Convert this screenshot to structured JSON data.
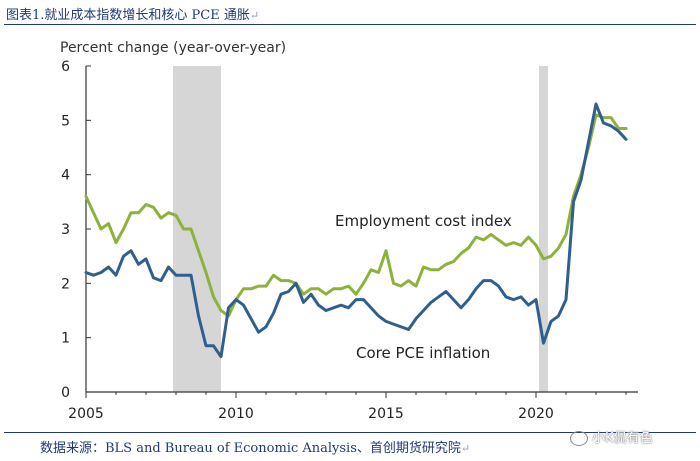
{
  "header": {
    "title": "图表1.就业成本指数增长和核心 PCE 通胀",
    "return_mark": "↵"
  },
  "footer": {
    "source": "数据来源：BLS and Bureau of Economic Analysis、首创期货研究院",
    "return_mark": "↵",
    "watermark": "小K侃有色"
  },
  "colors": {
    "eci": "#8db23c",
    "pce": "#2f5f8f",
    "recession": "#d6d6d6",
    "axis": "#333333",
    "title": "#1f3a78"
  },
  "chart_data": {
    "type": "line",
    "title": "",
    "ylabel": "Percent change (year-over-year)",
    "xlabel": "",
    "xlim": [
      2005,
      2023.4
    ],
    "ylim": [
      0,
      6
    ],
    "xticks": [
      2005,
      2010,
      2015,
      2020
    ],
    "yticks": [
      0,
      1,
      2,
      3,
      4,
      5,
      6
    ],
    "grid": false,
    "recessions": [
      [
        2007.9,
        2009.5
      ],
      [
        2020.1,
        2020.4
      ]
    ],
    "series": [
      {
        "name": "Employment cost index",
        "label": "Employment cost index",
        "x": [
          2005.0,
          2005.25,
          2005.5,
          2005.75,
          2006.0,
          2006.25,
          2006.5,
          2006.75,
          2007.0,
          2007.25,
          2007.5,
          2007.75,
          2008.0,
          2008.25,
          2008.5,
          2008.75,
          2009.0,
          2009.25,
          2009.5,
          2009.75,
          2010.0,
          2010.25,
          2010.5,
          2010.75,
          2011.0,
          2011.25,
          2011.5,
          2011.75,
          2012.0,
          2012.25,
          2012.5,
          2012.75,
          2013.0,
          2013.25,
          2013.5,
          2013.75,
          2014.0,
          2014.25,
          2014.5,
          2014.75,
          2015.0,
          2015.25,
          2015.5,
          2015.75,
          2016.0,
          2016.25,
          2016.5,
          2016.75,
          2017.0,
          2017.25,
          2017.5,
          2017.75,
          2018.0,
          2018.25,
          2018.5,
          2018.75,
          2019.0,
          2019.25,
          2019.5,
          2019.75,
          2020.0,
          2020.25,
          2020.5,
          2020.75,
          2021.0,
          2021.25,
          2021.5,
          2021.75,
          2022.0,
          2022.25,
          2022.5,
          2022.75,
          2023.0
        ],
        "y": [
          3.6,
          3.3,
          3.0,
          3.1,
          2.75,
          3.0,
          3.3,
          3.3,
          3.45,
          3.4,
          3.2,
          3.3,
          3.25,
          3.0,
          3.0,
          2.6,
          2.2,
          1.75,
          1.5,
          1.4,
          1.7,
          1.9,
          1.9,
          1.95,
          1.95,
          2.15,
          2.05,
          2.05,
          2.0,
          1.8,
          1.9,
          1.9,
          1.8,
          1.9,
          1.9,
          1.95,
          1.8,
          2.0,
          2.25,
          2.2,
          2.6,
          2.0,
          1.95,
          2.05,
          1.95,
          2.3,
          2.25,
          2.25,
          2.35,
          2.4,
          2.55,
          2.65,
          2.85,
          2.8,
          2.9,
          2.8,
          2.7,
          2.75,
          2.7,
          2.85,
          2.7,
          2.45,
          2.5,
          2.65,
          2.9,
          3.6,
          4.0,
          4.5,
          5.1,
          5.05,
          5.05,
          4.85,
          4.85
        ]
      },
      {
        "name": "Core PCE inflation",
        "label": "Core PCE inflation",
        "x": [
          2005.0,
          2005.25,
          2005.5,
          2005.75,
          2006.0,
          2006.25,
          2006.5,
          2006.75,
          2007.0,
          2007.25,
          2007.5,
          2007.75,
          2008.0,
          2008.25,
          2008.5,
          2008.75,
          2009.0,
          2009.25,
          2009.5,
          2009.75,
          2010.0,
          2010.25,
          2010.5,
          2010.75,
          2011.0,
          2011.25,
          2011.5,
          2011.75,
          2012.0,
          2012.25,
          2012.5,
          2012.75,
          2013.0,
          2013.25,
          2013.5,
          2013.75,
          2014.0,
          2014.25,
          2014.5,
          2014.75,
          2015.0,
          2015.25,
          2015.5,
          2015.75,
          2016.0,
          2016.25,
          2016.5,
          2016.75,
          2017.0,
          2017.25,
          2017.5,
          2017.75,
          2018.0,
          2018.25,
          2018.5,
          2018.75,
          2019.0,
          2019.25,
          2019.5,
          2019.75,
          2020.0,
          2020.25,
          2020.5,
          2020.75,
          2021.0,
          2021.25,
          2021.5,
          2021.75,
          2022.0,
          2022.25,
          2022.5,
          2022.75,
          2023.0
        ],
        "y": [
          2.2,
          2.15,
          2.2,
          2.3,
          2.15,
          2.5,
          2.6,
          2.35,
          2.45,
          2.1,
          2.05,
          2.3,
          2.15,
          2.15,
          2.15,
          1.4,
          0.85,
          0.85,
          0.65,
          1.55,
          1.7,
          1.6,
          1.35,
          1.1,
          1.2,
          1.45,
          1.8,
          1.85,
          2.0,
          1.65,
          1.8,
          1.6,
          1.5,
          1.55,
          1.6,
          1.55,
          1.7,
          1.7,
          1.55,
          1.4,
          1.3,
          1.25,
          1.2,
          1.15,
          1.35,
          1.5,
          1.65,
          1.75,
          1.85,
          1.7,
          1.55,
          1.7,
          1.9,
          2.05,
          2.05,
          1.95,
          1.75,
          1.7,
          1.75,
          1.6,
          1.7,
          0.9,
          1.3,
          1.4,
          1.7,
          3.5,
          3.9,
          4.6,
          5.3,
          4.95,
          4.9,
          4.8,
          4.65
        ]
      }
    ]
  }
}
